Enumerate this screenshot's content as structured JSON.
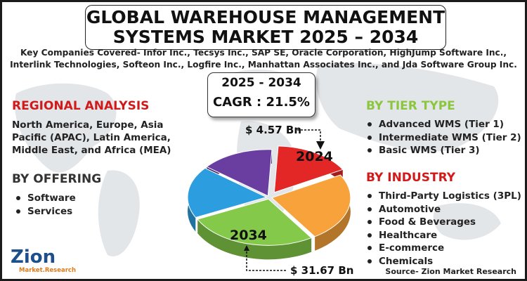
{
  "title": {
    "line1": "GLOBAL WAREHOUSE MANAGEMENT",
    "line2": "SYSTEMS MARKET 2025 – 2034"
  },
  "companies_text": "Key Companies Covered- Infor Inc., Tecsys Inc., SAP SE, Oracle Corporation, HighJump Software Inc., Interlink Technologies, Softeon Inc., Logfire Inc., Manhattan Associates Inc., and Jda Software Group Inc.",
  "cagr": {
    "years": "2025 - 2034",
    "value": "CAGR : 21.5%"
  },
  "regional": {
    "heading": "REGIONAL ANALYSIS",
    "text": "North America, Europe, Asia Pacific (APAC), Latin America, Middle East, and Africa (MEA)"
  },
  "offering": {
    "heading": "BY OFFERING",
    "items": [
      "Software",
      "Services"
    ]
  },
  "tier": {
    "heading": "BY TIER TYPE",
    "items": [
      "Advanced WMS (Tier 1)",
      "Intermediate WMS (Tier 2)",
      "Basic WMS (Tier 3)"
    ]
  },
  "industry": {
    "heading": "BY INDUSTRY",
    "items": [
      "Third-Party Logistics (3PL)",
      "Automotive",
      "Food & Beverages",
      "Healthcare",
      "E-commerce",
      "Chemicals"
    ]
  },
  "logo": {
    "word": "Zion",
    "sub": "Market.Research"
  },
  "source": "Source- Zion Market Research",
  "colors": {
    "red": "#e32626",
    "orange": "#f7a23b",
    "green": "#84c94a",
    "blue": "#2c9ee0",
    "purple": "#6a3ea0",
    "heading_red": "#d11b1b",
    "heading_green": "#8cc63f"
  },
  "chart_data": {
    "type": "pie",
    "title": "",
    "slices": [
      {
        "color": "#e32626",
        "fraction": 0.16
      },
      {
        "color": "#f7a23b",
        "fraction": 0.24
      },
      {
        "color": "#84c94a",
        "fraction": 0.27
      },
      {
        "color": "#2c9ee0",
        "fraction": 0.18
      },
      {
        "color": "#6a3ea0",
        "fraction": 0.15
      }
    ],
    "annotations": [
      {
        "year": "2024",
        "value": "$ 4.57 Bn"
      },
      {
        "year": "2034",
        "value": "$ 31.67 Bn"
      }
    ]
  }
}
